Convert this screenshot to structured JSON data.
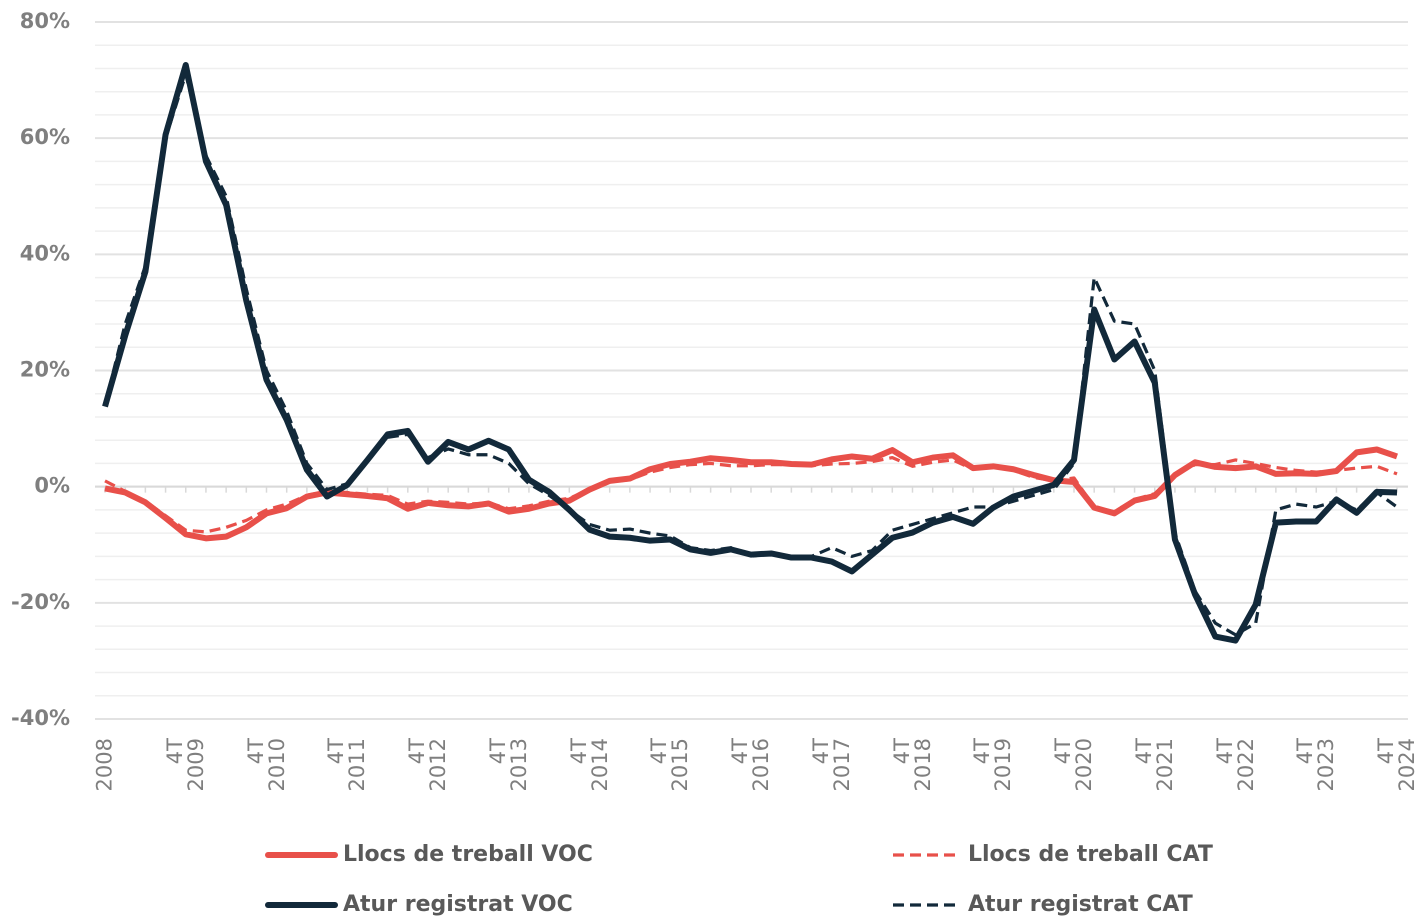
{
  "chart_data": {
    "type": "line",
    "categories": [
      "2008",
      null,
      null,
      null,
      "4T 2009",
      null,
      null,
      null,
      "4T 2010",
      null,
      null,
      null,
      "4T 2011",
      null,
      null,
      null,
      "4T 2012",
      null,
      null,
      null,
      "4T 2013",
      null,
      null,
      null,
      "4T 2014",
      null,
      null,
      null,
      "4T 2015",
      null,
      null,
      null,
      "4T 2016",
      null,
      null,
      null,
      "4T 2017",
      null,
      null,
      null,
      "4T 2018",
      null,
      null,
      null,
      "4T 2019",
      null,
      null,
      null,
      "4T 2020",
      null,
      null,
      null,
      "4T 2021",
      null,
      null,
      null,
      "4T 2022",
      null,
      null,
      null,
      "4T 2023",
      null,
      null,
      null,
      "4T 2024"
    ],
    "ylim": [
      -40,
      80
    ],
    "yticks": [
      {
        "value": -40,
        "label": "-40%"
      },
      {
        "value": -20,
        "label": "-20%"
      },
      {
        "value": 0,
        "label": "0%"
      },
      {
        "value": 20,
        "label": "20%"
      },
      {
        "value": 40,
        "label": "40%"
      },
      {
        "value": 60,
        "label": "60%"
      },
      {
        "value": 80,
        "label": "80%"
      }
    ],
    "grid": true,
    "minor_grid": true,
    "legend": "bottom",
    "series": [
      {
        "name": "Llocs de treball VOC",
        "color": "#e8504a",
        "dashed": false,
        "values": [
          -0.3,
          -1,
          -2.7,
          -5.4,
          -8.2,
          -8.9,
          -8.6,
          -7,
          -4.6,
          -3.7,
          -1.7,
          -1,
          -1.3,
          -1.6,
          -2,
          -3.8,
          -2.8,
          -3.2,
          -3.4,
          -2.9,
          -4.3,
          -3.8,
          -2.9,
          -2.4,
          -0.5,
          1,
          1.4,
          3,
          3.9,
          4.3,
          4.9,
          4.6,
          4.2,
          4.2,
          3.9,
          3.8,
          4.7,
          5.2,
          4.8,
          6.3,
          4.2,
          5,
          5.4,
          3.2,
          3.5,
          3,
          2,
          1.1,
          0.8,
          -3.6,
          -4.6,
          -2.4,
          -1.6,
          2,
          4.2,
          3.4,
          3.2,
          3.5,
          2.2,
          2.3,
          2.2,
          2.7,
          5.9,
          6.4,
          5.2
        ]
      },
      {
        "name": "Llocs de treball CAT",
        "color": "#e8504a",
        "dashed": true,
        "values": [
          1,
          -0.8,
          -2.5,
          -5,
          -7.5,
          -7.8,
          -7,
          -5.8,
          -4,
          -3,
          -1.5,
          -0.8,
          -1,
          -1.3,
          -1.5,
          -3,
          -2.5,
          -2.7,
          -3,
          -2.8,
          -3.8,
          -3.3,
          -2.5,
          -2,
          -0.5,
          0.8,
          1.2,
          2.5,
          3.3,
          3.8,
          4,
          3.6,
          3.6,
          3.8,
          3.8,
          3.6,
          3.9,
          4,
          4.3,
          5,
          3.5,
          4.2,
          4.6,
          3,
          3.5,
          2.8,
          1.6,
          1,
          1.5,
          -3.5,
          -4.3,
          -2.2,
          -1.2,
          2,
          3.8,
          3.8,
          4.6,
          4,
          3.3,
          2.8,
          2.5,
          2.8,
          3.2,
          3.5,
          2.2
        ]
      },
      {
        "name": "Atur registrat VOC",
        "color": "#12293a",
        "dashed": false,
        "values": [
          13.8,
          26,
          37,
          60.6,
          72.6,
          56,
          48.5,
          32,
          18.4,
          11.5,
          2.9,
          -1.7,
          0.3,
          4.6,
          9,
          9.6,
          4.3,
          7.7,
          6.4,
          7.9,
          6.4,
          1.2,
          -0.9,
          -4,
          -7.4,
          -8.6,
          -8.8,
          -9.3,
          -9.1,
          -10.8,
          -11.4,
          -10.8,
          -11.7,
          -11.5,
          -12.2,
          -12.2,
          -12.9,
          -14.6,
          -11.7,
          -8.8,
          -7.9,
          -6.2,
          -5.2,
          -6.4,
          -3.6,
          -1.7,
          -0.7,
          0.3,
          4.6,
          30.5,
          21.9,
          25,
          17.9,
          -9.1,
          -18.6,
          -25.8,
          -26.5,
          -20.3,
          -6.2,
          -6,
          -6,
          -2.2,
          -4.5,
          -0.9,
          -1
        ]
      },
      {
        "name": "Atur registrat CAT",
        "color": "#12293a",
        "dashed": true,
        "values": [
          14,
          28,
          38,
          60,
          71,
          57,
          50,
          34,
          20,
          13,
          4,
          -0.5,
          0.5,
          4.5,
          8.5,
          9,
          5,
          6.5,
          5.5,
          5.5,
          4,
          0.5,
          -1.5,
          -4,
          -6.5,
          -7.5,
          -7.3,
          -8,
          -8.5,
          -10.5,
          -11,
          -10.5,
          -12,
          -11.5,
          -12,
          -12,
          -10.5,
          -12,
          -11,
          -7.5,
          -6.5,
          -5.5,
          -4.5,
          -3.5,
          -3.5,
          -2.5,
          -1.5,
          -0.5,
          4,
          36,
          28.5,
          28,
          20,
          -8,
          -18,
          -23.5,
          -25.5,
          -23.5,
          -4,
          -3,
          -3.5,
          -2.5,
          -4,
          -1,
          -3.5
        ]
      }
    ]
  }
}
